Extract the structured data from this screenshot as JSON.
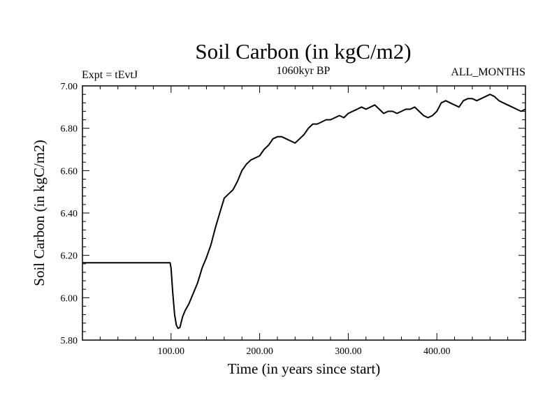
{
  "chart_data": {
    "type": "line",
    "title": "Soil Carbon (in kgC/m2)",
    "subtitle_left": "Expt = tEvtJ",
    "subtitle_center": "1060kyr BP",
    "subtitle_right": "ALL_MONTHS",
    "xlabel": "Time (in years since start)",
    "ylabel": "Soil Carbon (in kgC/m2)",
    "xlim": [
      0,
      500
    ],
    "ylim": [
      5.8,
      7.0
    ],
    "x_ticks": [
      100,
      200,
      300,
      400
    ],
    "x_tick_labels": [
      "100.00",
      "200.00",
      "300.00",
      "400.00"
    ],
    "y_ticks": [
      5.8,
      6.0,
      6.2,
      6.4,
      6.6,
      6.8,
      7.0
    ],
    "y_tick_labels": [
      "5.80",
      "6.00",
      "6.20",
      "6.40",
      "6.60",
      "6.80",
      "7.00"
    ],
    "grid": false,
    "series": [
      {
        "name": "Soil Carbon",
        "color": "#000000",
        "x": [
          0,
          99,
          100,
          102,
          104,
          106,
          108,
          110,
          113,
          116,
          120,
          125,
          130,
          135,
          140,
          145,
          150,
          155,
          160,
          165,
          170,
          175,
          180,
          185,
          190,
          195,
          200,
          205,
          210,
          215,
          220,
          225,
          230,
          235,
          240,
          245,
          250,
          255,
          260,
          265,
          270,
          275,
          280,
          285,
          290,
          295,
          300,
          305,
          310,
          315,
          320,
          325,
          330,
          335,
          340,
          345,
          350,
          355,
          360,
          365,
          370,
          375,
          380,
          385,
          390,
          395,
          400,
          405,
          410,
          415,
          420,
          425,
          430,
          435,
          440,
          445,
          450,
          455,
          460,
          465,
          470,
          475,
          480,
          485,
          490,
          495,
          500
        ],
        "values": [
          6.165,
          6.165,
          6.14,
          6.02,
          5.92,
          5.87,
          5.855,
          5.86,
          5.91,
          5.94,
          5.97,
          6.02,
          6.07,
          6.14,
          6.19,
          6.25,
          6.33,
          6.4,
          6.47,
          6.49,
          6.51,
          6.55,
          6.6,
          6.63,
          6.65,
          6.66,
          6.67,
          6.7,
          6.72,
          6.75,
          6.76,
          6.76,
          6.75,
          6.74,
          6.73,
          6.75,
          6.77,
          6.8,
          6.82,
          6.82,
          6.83,
          6.84,
          6.84,
          6.85,
          6.86,
          6.85,
          6.87,
          6.88,
          6.89,
          6.9,
          6.89,
          6.9,
          6.91,
          6.89,
          6.87,
          6.88,
          6.88,
          6.87,
          6.88,
          6.89,
          6.89,
          6.9,
          6.88,
          6.86,
          6.85,
          6.86,
          6.88,
          6.92,
          6.93,
          6.92,
          6.91,
          6.9,
          6.93,
          6.94,
          6.94,
          6.93,
          6.94,
          6.95,
          6.96,
          6.95,
          6.93,
          6.92,
          6.91,
          6.9,
          6.89,
          6.88,
          6.89
        ]
      }
    ]
  }
}
